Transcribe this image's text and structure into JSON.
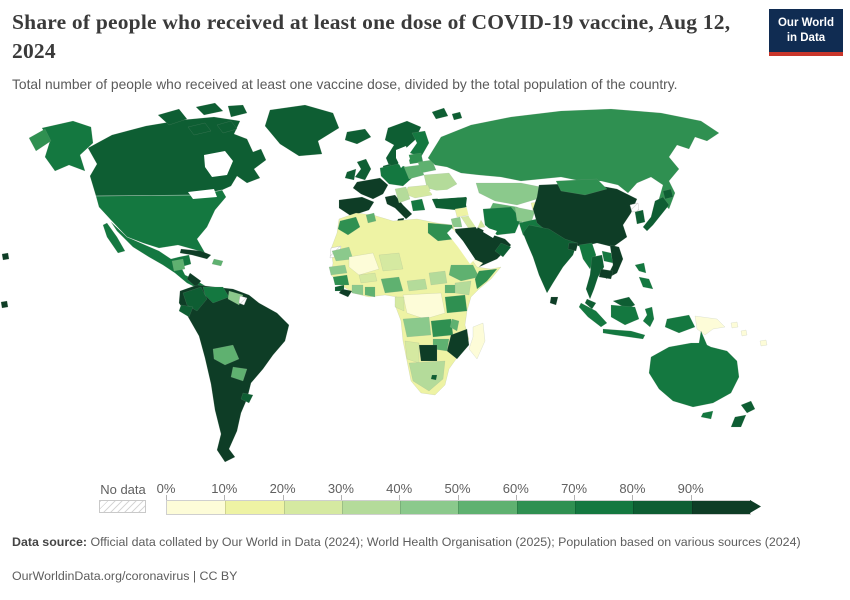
{
  "header": {
    "title": "Share of people who received at least one dose of COVID-19 vaccine, Aug 12, 2024",
    "subtitle": "Total number of people who received at least one vaccine dose, divided by the total population of the country.",
    "logo": {
      "line1": "Our World",
      "line2": "in Data",
      "bg": "#102c52",
      "accent": "#c9362b"
    }
  },
  "chart_data": {
    "type": "heatmap",
    "subtype": "choropleth-world-map",
    "title": "Share of people who received at least one dose of COVID-19 vaccine",
    "date": "Aug 12, 2024",
    "unit": "% of population",
    "legend": {
      "position": "bottom",
      "no_data_label": "No data",
      "tick_labels": [
        "0%",
        "10%",
        "20%",
        "30%",
        "40%",
        "50%",
        "60%",
        "70%",
        "80%",
        "90%"
      ],
      "bucket_ranges": [
        "0-10%",
        "10-20%",
        "20-30%",
        "30-40%",
        "40-50%",
        "50-60%",
        "60-70%",
        "70-80%",
        "80-90%",
        "90%+"
      ],
      "bucket_colors": [
        "#fdfcd8",
        "#eef3a4",
        "#d5e9a1",
        "#b4db9a",
        "#8bc98c",
        "#5fb170",
        "#2f9051",
        "#147840",
        "#0e5e33",
        "#0e3d26"
      ],
      "no_data_hatch_color": "#cfcfcf"
    },
    "regions": [
      {
        "id": "canada",
        "name": "Canada",
        "bucket": 8,
        "range": "80-90%"
      },
      {
        "id": "usa",
        "name": "United States",
        "bucket": 7,
        "range": "70-80%"
      },
      {
        "id": "greenland",
        "name": "Greenland",
        "bucket": 8,
        "range": "80-90%"
      },
      {
        "id": "mexico",
        "name": "Mexico",
        "bucket": 7,
        "range": "70-80%"
      },
      {
        "id": "guatemala",
        "name": "Guatemala",
        "bucket": 5,
        "range": "50-60%"
      },
      {
        "id": "nicaragua",
        "name": "Nicaragua",
        "bucket": 9,
        "range": "90%+"
      },
      {
        "id": "cuba",
        "name": "Cuba",
        "bucket": 9,
        "range": "90%+"
      },
      {
        "id": "hispaniola",
        "name": "Dominican Republic",
        "bucket": 5,
        "range": "50-60%"
      },
      {
        "id": "colombia",
        "name": "Colombia",
        "bucket": 8,
        "range": "80-90%"
      },
      {
        "id": "venezuela",
        "name": "Venezuela",
        "bucket": 7,
        "range": "70-80%"
      },
      {
        "id": "guyana",
        "name": "Guyana",
        "bucket": 4,
        "range": "40-50%"
      },
      {
        "id": "ecuador",
        "name": "Ecuador",
        "bucket": 8,
        "range": "80-90%"
      },
      {
        "id": "peru",
        "name": "Peru",
        "bucket": 9,
        "range": "90%+"
      },
      {
        "id": "brazil",
        "name": "Brazil",
        "bucket": 9,
        "range": "90%+"
      },
      {
        "id": "bolivia",
        "name": "Bolivia",
        "bucket": 5,
        "range": "50-60%"
      },
      {
        "id": "paraguay",
        "name": "Paraguay",
        "bucket": 5,
        "range": "50-60%"
      },
      {
        "id": "uruguay",
        "name": "Uruguay",
        "bucket": 8,
        "range": "80-90%"
      },
      {
        "id": "argentina",
        "name": "Argentina",
        "bucket": 9,
        "range": "90%+"
      },
      {
        "id": "chile",
        "name": "Chile",
        "bucket": 9,
        "range": "90%+"
      },
      {
        "id": "iceland",
        "name": "Iceland",
        "bucket": 8,
        "range": "80-90%"
      },
      {
        "id": "uk",
        "name": "United Kingdom",
        "bucket": 8,
        "range": "80-90%"
      },
      {
        "id": "ireland",
        "name": "Ireland",
        "bucket": 8,
        "range": "80-90%"
      },
      {
        "id": "scandinavia",
        "name": "Norway/Sweden",
        "bucket": 8,
        "range": "80-90%"
      },
      {
        "id": "finland",
        "name": "Finland",
        "bucket": 7,
        "range": "70-80%"
      },
      {
        "id": "denmark",
        "name": "Denmark",
        "bucket": 8,
        "range": "80-90%"
      },
      {
        "id": "germany",
        "name": "Germany",
        "bucket": 7,
        "range": "70-80%"
      },
      {
        "id": "france",
        "name": "France",
        "bucket": 9,
        "range": "90%+"
      },
      {
        "id": "spain",
        "name": "Spain",
        "bucket": 9,
        "range": "90%+"
      },
      {
        "id": "portugal",
        "name": "Portugal",
        "bucket": 9,
        "range": "90%+"
      },
      {
        "id": "italy",
        "name": "Italy",
        "bucket": 9,
        "range": "90%+"
      },
      {
        "id": "poland",
        "name": "Poland",
        "bucket": 5,
        "range": "50-60%"
      },
      {
        "id": "baltic-states",
        "name": "Baltic states",
        "bucket": 6,
        "range": "60-70%"
      },
      {
        "id": "belarus",
        "name": "Belarus",
        "bucket": 5,
        "range": "50-60%"
      },
      {
        "id": "ukraine",
        "name": "Ukraine",
        "bucket": 3,
        "range": "30-40%"
      },
      {
        "id": "romania",
        "name": "Romania",
        "bucket": 2,
        "range": "20-30%"
      },
      {
        "id": "balkans",
        "name": "Western Balkans",
        "bucket": 3,
        "range": "30-40%"
      },
      {
        "id": "greece",
        "name": "Greece",
        "bucket": 7,
        "range": "70-80%"
      },
      {
        "id": "turkey",
        "name": "Turkey",
        "bucket": 8,
        "range": "80-90%"
      },
      {
        "id": "russia",
        "name": "Russia",
        "bucket": 6,
        "range": "60-70%"
      },
      {
        "id": "kazakhstan",
        "name": "Kazakhstan",
        "bucket": 4,
        "range": "40-50%"
      },
      {
        "id": "uzbekistan",
        "name": "Uzbekistan/Turkmenistan",
        "bucket": 5,
        "range": "50-60%"
      },
      {
        "id": "kyrgyzstan",
        "name": "Kyrgyzstan",
        "bucket": 1,
        "range": "10-20%"
      },
      {
        "id": "syria",
        "name": "Syria",
        "bucket": 1,
        "range": "10-20%"
      },
      {
        "id": "iraq",
        "name": "Iraq",
        "bucket": 2,
        "range": "20-30%"
      },
      {
        "id": "jordan",
        "name": "Jordan",
        "bucket": 4,
        "range": "40-50%"
      },
      {
        "id": "iran",
        "name": "Iran",
        "bucket": 7,
        "range": "70-80%"
      },
      {
        "id": "afghanistan",
        "name": "Afghanistan",
        "bucket": 4,
        "range": "40-50%"
      },
      {
        "id": "pakistan",
        "name": "Pakistan",
        "bucket": 7,
        "range": "70-80%"
      },
      {
        "id": "saudi-arabia",
        "name": "Saudi Arabia",
        "bucket": 9,
        "range": "90%+"
      },
      {
        "id": "yemen",
        "name": "Yemen",
        "bucket": 0,
        "range": "0-10%"
      },
      {
        "id": "oman",
        "name": "Oman",
        "bucket": 8,
        "range": "80-90%"
      },
      {
        "id": "morocco",
        "name": "Morocco",
        "bucket": 6,
        "range": "60-70%"
      },
      {
        "id": "algeria",
        "name": "Algeria",
        "bucket": 1,
        "range": "10-20%"
      },
      {
        "id": "tunisia",
        "name": "Tunisia",
        "bucket": 5,
        "range": "50-60%"
      },
      {
        "id": "libya",
        "name": "Libya",
        "bucket": 1,
        "range": "10-20%"
      },
      {
        "id": "egypt",
        "name": "Egypt",
        "bucket": 6,
        "range": "60-70%"
      },
      {
        "id": "sudan",
        "name": "Sudan",
        "bucket": 1,
        "range": "10-20%"
      },
      {
        "id": "chad",
        "name": "Chad",
        "bucket": 1,
        "range": "10-20%"
      },
      {
        "id": "mauritania",
        "name": "Mauritania",
        "bucket": 4,
        "range": "40-50%"
      },
      {
        "id": "mali",
        "name": "Mali",
        "bucket": 0,
        "range": "0-10%"
      },
      {
        "id": "niger",
        "name": "Niger",
        "bucket": 2,
        "range": "20-30%"
      },
      {
        "id": "senegal",
        "name": "Senegal",
        "bucket": 4,
        "range": "40-50%"
      },
      {
        "id": "guinea",
        "name": "Guinea",
        "bucket": 6,
        "range": "60-70%"
      },
      {
        "id": "sierra-leone",
        "name": "Sierra Leone",
        "bucket": 8,
        "range": "80-90%"
      },
      {
        "id": "liberia",
        "name": "Liberia",
        "bucket": 9,
        "range": "90%+"
      },
      {
        "id": "ivory-coast",
        "name": "Cote d'Ivoire",
        "bucket": 4,
        "range": "40-50%"
      },
      {
        "id": "ghana",
        "name": "Ghana",
        "bucket": 5,
        "range": "50-60%"
      },
      {
        "id": "burkina-faso",
        "name": "Burkina Faso",
        "bucket": 2,
        "range": "20-30%"
      },
      {
        "id": "nigeria",
        "name": "Nigeria",
        "bucket": 5,
        "range": "50-60%"
      },
      {
        "id": "cameroon",
        "name": "Cameroon",
        "bucket": 1,
        "range": "10-20%"
      },
      {
        "id": "central-african-republic",
        "name": "Central African Republic",
        "bucket": 3,
        "range": "30-40%"
      },
      {
        "id": "south-sudan",
        "name": "South Sudan",
        "bucket": 3,
        "range": "30-40%"
      },
      {
        "id": "ethiopia",
        "name": "Ethiopia",
        "bucket": 5,
        "range": "50-60%"
      },
      {
        "id": "somalia",
        "name": "Somalia",
        "bucket": 6,
        "range": "60-70%"
      },
      {
        "id": "kenya",
        "name": "Kenya",
        "bucket": 3,
        "range": "30-40%"
      },
      {
        "id": "uganda",
        "name": "Uganda",
        "bucket": 5,
        "range": "50-60%"
      },
      {
        "id": "drc",
        "name": "Democratic Republic of Congo",
        "bucket": 0,
        "range": "0-10%"
      },
      {
        "id": "congo",
        "name": "Congo/Gabon",
        "bucket": 2,
        "range": "20-30%"
      },
      {
        "id": "tanzania",
        "name": "Tanzania",
        "bucket": 6,
        "range": "60-70%"
      },
      {
        "id": "angola",
        "name": "Angola",
        "bucket": 4,
        "range": "40-50%"
      },
      {
        "id": "zambia",
        "name": "Zambia",
        "bucket": 6,
        "range": "60-70%"
      },
      {
        "id": "malawi",
        "name": "Malawi",
        "bucket": 5,
        "range": "50-60%"
      },
      {
        "id": "mozambique",
        "name": "Mozambique",
        "bucket": 9,
        "range": "90%+"
      },
      {
        "id": "zimbabwe",
        "name": "Zimbabwe",
        "bucket": 5,
        "range": "50-60%"
      },
      {
        "id": "botswana",
        "name": "Botswana",
        "bucket": 9,
        "range": "90%+"
      },
      {
        "id": "namibia",
        "name": "Namibia",
        "bucket": 2,
        "range": "20-30%"
      },
      {
        "id": "south-africa",
        "name": "South Africa",
        "bucket": 3,
        "range": "30-40%"
      },
      {
        "id": "lesotho",
        "name": "Lesotho",
        "bucket": 8,
        "range": "80-90%"
      },
      {
        "id": "madagascar",
        "name": "Madagascar",
        "bucket": 0,
        "range": "0-10%"
      },
      {
        "id": "china",
        "name": "China",
        "bucket": 9,
        "range": "90%+"
      },
      {
        "id": "mongolia",
        "name": "Mongolia",
        "bucket": 6,
        "range": "60-70%"
      },
      {
        "id": "south-korea",
        "name": "South Korea",
        "bucket": 8,
        "range": "80-90%"
      },
      {
        "id": "japan",
        "name": "Japan",
        "bucket": 8,
        "range": "80-90%"
      },
      {
        "id": "india",
        "name": "India",
        "bucket": 8,
        "range": "80-90%"
      },
      {
        "id": "sri-lanka",
        "name": "Sri Lanka",
        "bucket": 9,
        "range": "90%+"
      },
      {
        "id": "bangladesh",
        "name": "Bangladesh",
        "bucket": 9,
        "range": "90%+"
      },
      {
        "id": "myanmar",
        "name": "Myanmar",
        "bucket": 7,
        "range": "70-80%"
      },
      {
        "id": "thailand",
        "name": "Thailand",
        "bucket": 8,
        "range": "80-90%"
      },
      {
        "id": "laos",
        "name": "Laos",
        "bucket": 7,
        "range": "70-80%"
      },
      {
        "id": "vietnam",
        "name": "Vietnam",
        "bucket": 9,
        "range": "90%+"
      },
      {
        "id": "cambodia",
        "name": "Cambodia",
        "bucket": 9,
        "range": "90%+"
      },
      {
        "id": "malaysia",
        "name": "Malaysia",
        "bucket": 8,
        "range": "80-90%"
      },
      {
        "id": "indonesia",
        "name": "Indonesia",
        "bucket": 7,
        "range": "70-80%"
      },
      {
        "id": "philippines",
        "name": "Philippines",
        "bucket": 7,
        "range": "70-80%"
      },
      {
        "id": "papua-new-guinea",
        "name": "Papua New Guinea",
        "bucket": 0,
        "range": "0-10%"
      },
      {
        "id": "pacific-islands",
        "name": "Pacific islands",
        "bucket": 0,
        "range": "0-10%"
      },
      {
        "id": "australia",
        "name": "Australia",
        "bucket": 7,
        "range": "70-80%"
      },
      {
        "id": "new-zealand",
        "name": "New Zealand",
        "bucket": 8,
        "range": "80-90%"
      },
      {
        "id": "fiji",
        "name": "Fiji",
        "bucket": 9,
        "range": "90%+"
      }
    ]
  },
  "footer": {
    "data_source_label": "Data source:",
    "data_source_text": " Official data collated by Our World in Data (2024); World Health Organisation (2025); Population based on various sources (2024)",
    "citation": "OurWorldinData.org/coronavirus | CC BY"
  }
}
